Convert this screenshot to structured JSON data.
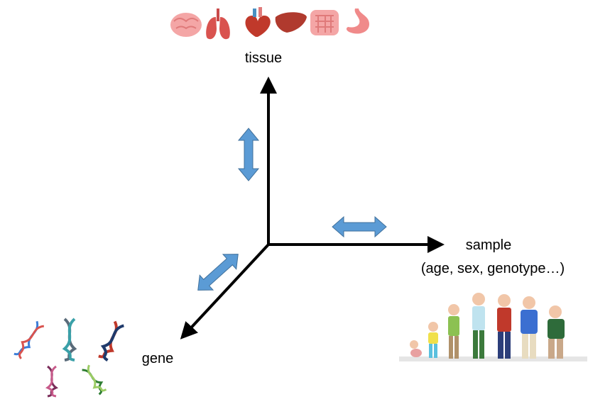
{
  "axes": {
    "tissue": {
      "label": "tissue"
    },
    "sample": {
      "label": "sample",
      "sublabel": "(age, sex, genotype…)"
    },
    "gene": {
      "label": "gene"
    }
  },
  "icons": {
    "organs": [
      "brain-icon",
      "lungs-icon",
      "heart-icon",
      "liver-icon",
      "intestine-icon",
      "stomach-icon"
    ],
    "dna": [
      "dna-helix-blue-red-icon",
      "dna-helix-grey-teal-icon",
      "dna-helix-red-navy-icon",
      "dna-helix-purple-icon",
      "dna-helix-green-icon"
    ],
    "people": [
      "baby-icon",
      "child-icon",
      "teen-icon",
      "young-man-icon",
      "adult-man-icon",
      "middle-aged-man-icon",
      "elderly-man-icon"
    ]
  },
  "colors": {
    "axis": "#000000",
    "double_arrow": "#5b9bd5",
    "double_arrow_stroke": "#41719c",
    "organ_pink": "#f08a8a",
    "organ_dark": "#d9534f"
  }
}
